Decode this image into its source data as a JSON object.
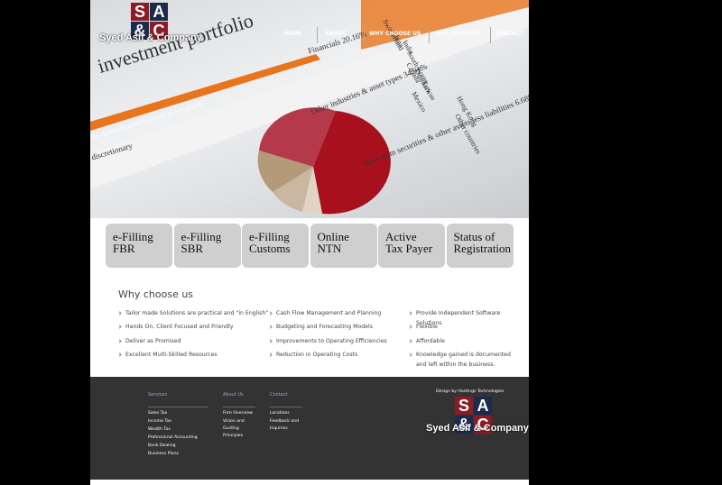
{
  "header": {
    "logo": [
      "S",
      "A",
      "&",
      "C"
    ],
    "company": "Syed Asif & Company",
    "nav": [
      "HOME",
      "ABOUT",
      "WHY CHOOSE US",
      "OUR SERVICES",
      "CONTACT"
    ]
  },
  "hero": {
    "labels": [
      "investment portfolio",
      "Financials 20.16%",
      "Other industries & asset types 34.91%",
      "Short-term securities & other assets less liabilities 6.68%",
      "for diversification (percent of net assets)",
      "discretionary",
      "Other countries",
      "Hong Kong",
      "Mexico",
      "Taiwan",
      "Denmark",
      "Canada",
      "South Korea",
      "India",
      "China",
      "Switzerland"
    ]
  },
  "tabs": [
    [
      "e-Filling",
      "FBR"
    ],
    [
      "e-Filling",
      "SBR"
    ],
    [
      "e-Filling",
      "Customs"
    ],
    [
      "Online",
      "NTN"
    ],
    [
      "Active",
      "Tax Payer"
    ],
    [
      "Status of",
      "Registration"
    ]
  ],
  "why": {
    "title": "Why choose us",
    "columns": [
      [
        "Tailor made Solutions are practical and \"in English\"",
        "Hands On, Client Focused and Friendly",
        "Deliver as Promised",
        "Excellent Multi-Skilled Resources"
      ],
      [
        "Cash Flow Management and Planning",
        "Budgeting and Forecasting Models",
        "Improvements to Operating Efficiencies",
        "Reduction in Operating Costs"
      ],
      [
        "Provide Independent Software Solutions",
        "Flexible",
        "Affordable",
        "Knowledge gained is documented and left within the business."
      ]
    ]
  },
  "footer": {
    "columns": [
      {
        "heading": "Services",
        "links": [
          "Sales Tax",
          "Income Tax",
          "Wealth Tax",
          "Professional Accounting",
          "Bank Dealing",
          "Business Plans"
        ]
      },
      {
        "heading": "About Us",
        "links": [
          "Firm Overview",
          "Vision and Guiding Principles"
        ]
      },
      {
        "heading": "Contact",
        "links": [
          "Locations",
          "Feedback and Inquiries"
        ]
      }
    ],
    "credit": "Design by Hostings Technologies",
    "logo": [
      "S",
      "A",
      "&",
      "C"
    ],
    "company": "Syed Asif & Company"
  }
}
